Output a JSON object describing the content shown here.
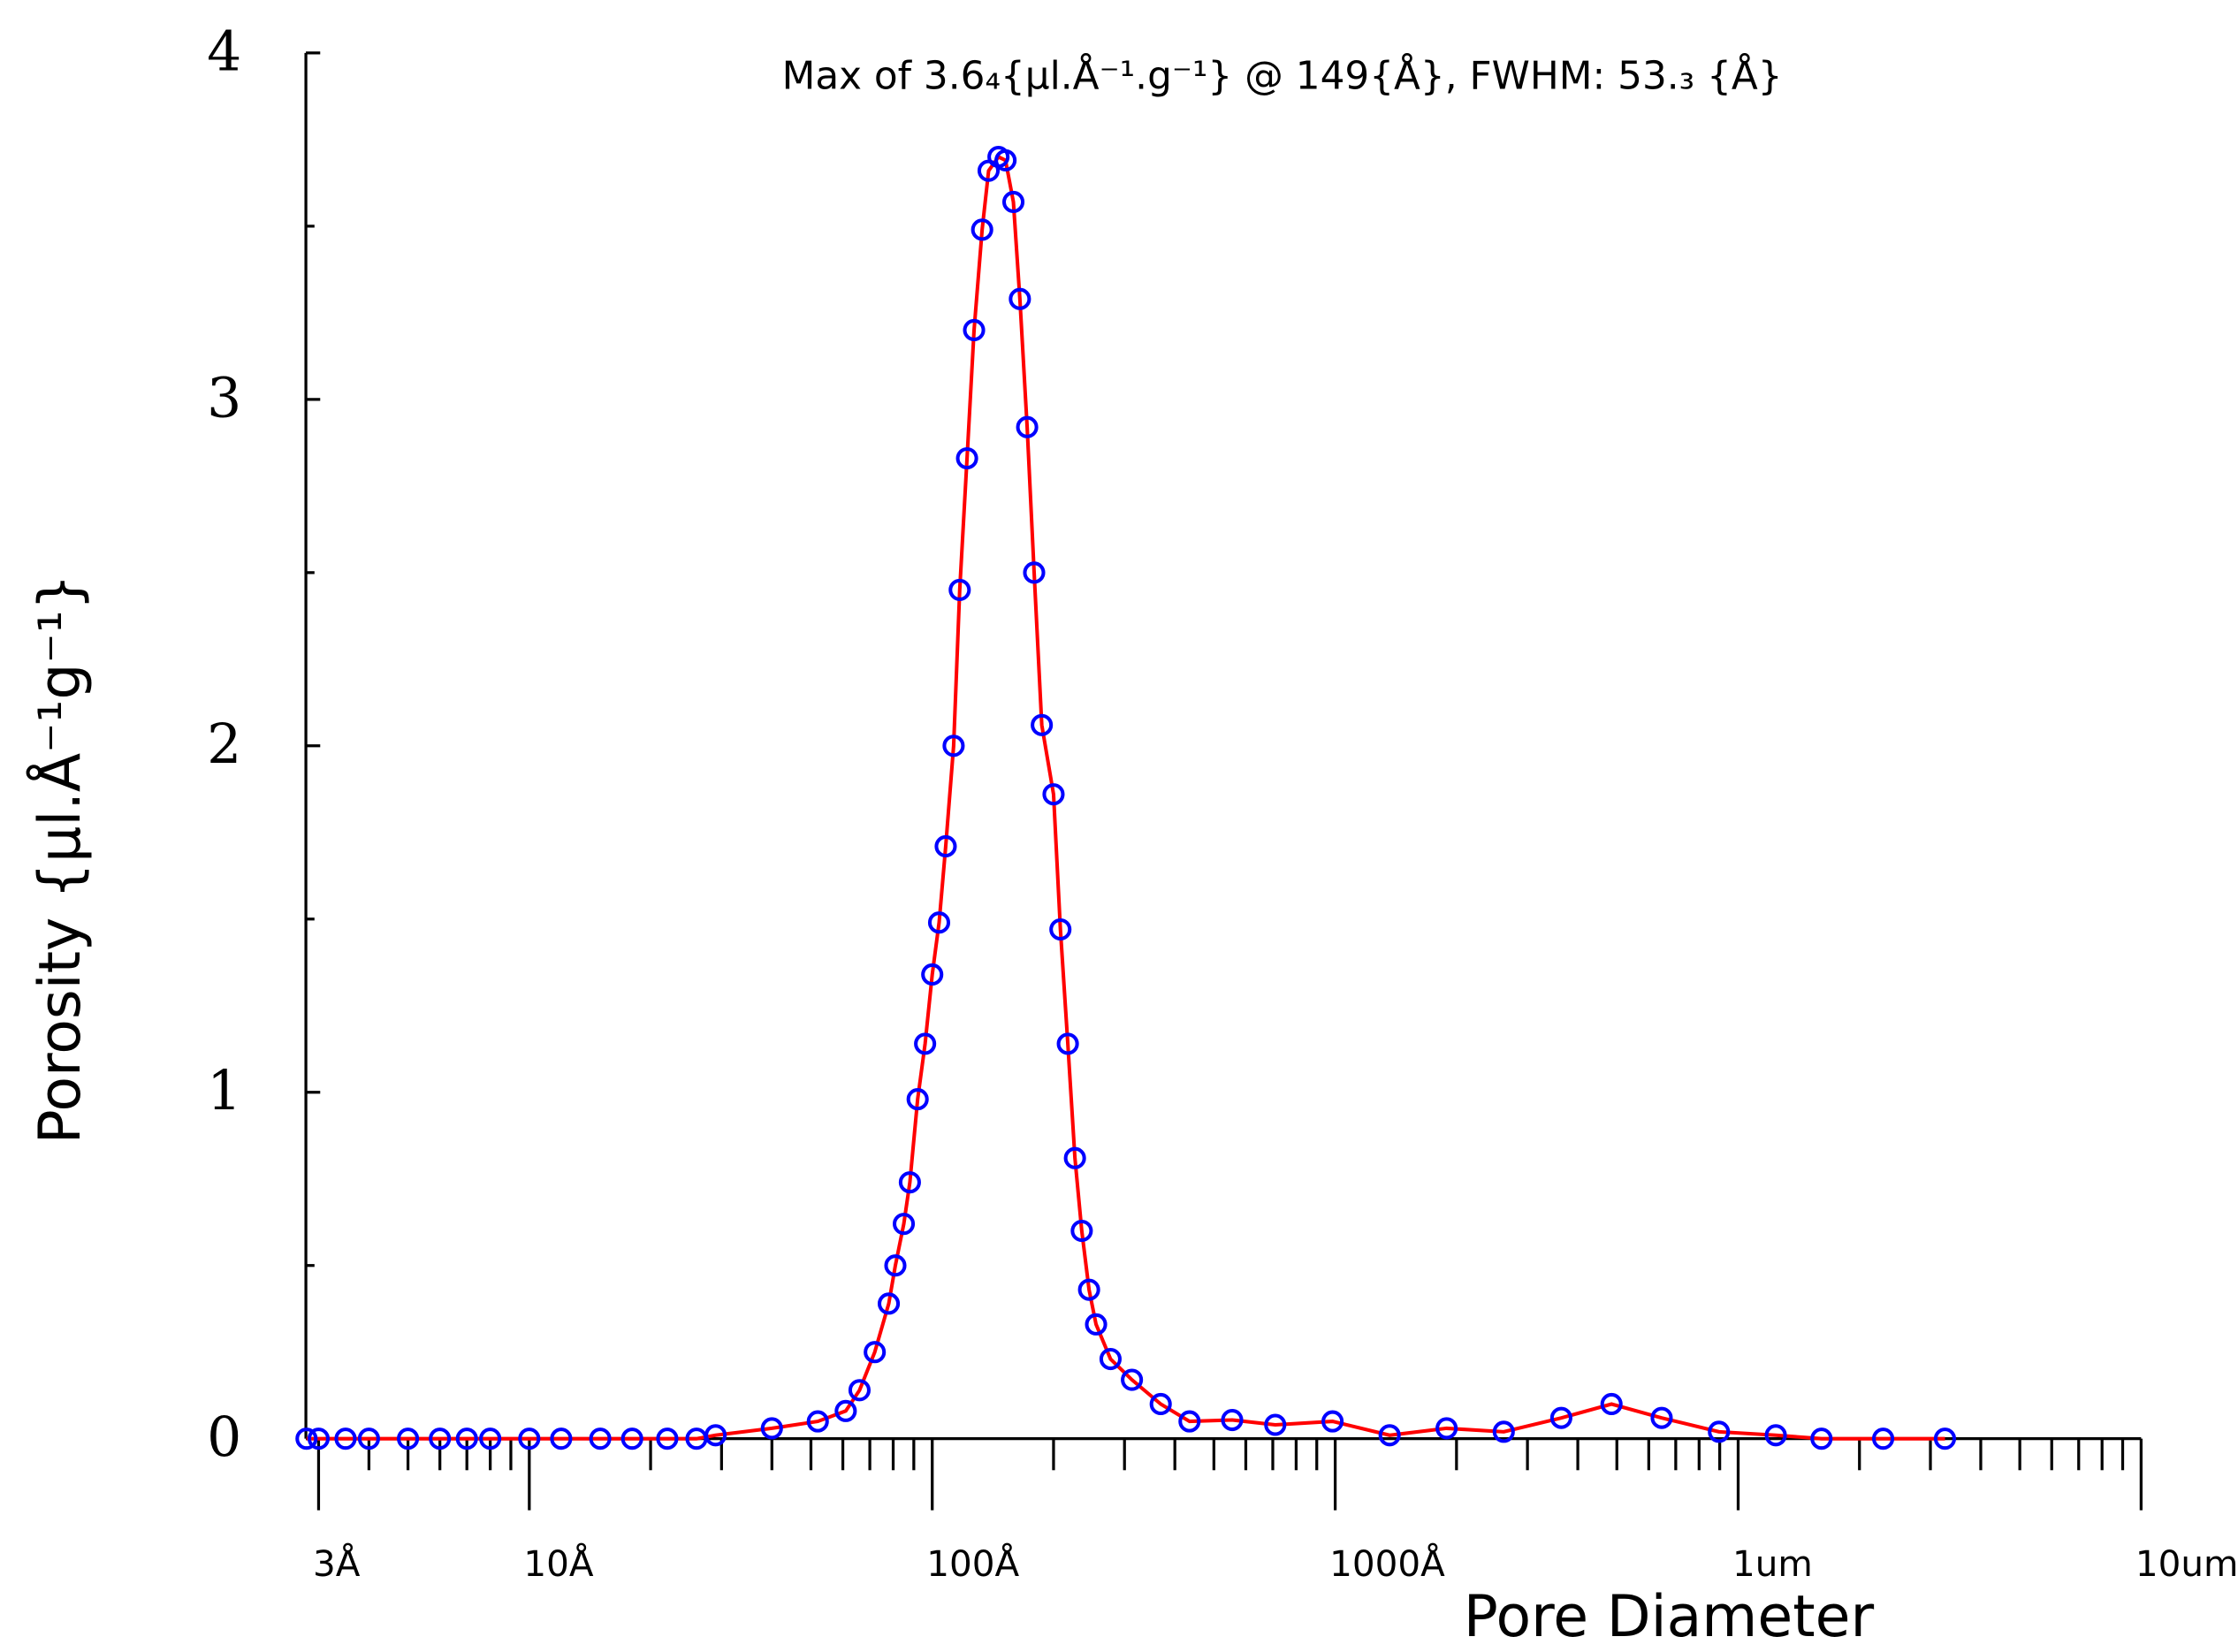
{
  "chart_data": {
    "type": "line",
    "title": "Max  of   3.6₄{µl.Å⁻¹.g⁻¹}  @   149{Å},  FWHM:   53.₃  {Å}",
    "x_label": "Pore  Diameter",
    "y_label": "Porosity  {µl.Å⁻¹g⁻¹}",
    "log_x": true,
    "xlim": [
      2.79,
      100000
    ],
    "xticks": [
      {
        "value": 3,
        "label": "3Å"
      },
      {
        "value": 10,
        "label": "10Å"
      },
      {
        "value": 100,
        "label": "100Å"
      },
      {
        "value": 1000,
        "label": "1000Å"
      },
      {
        "value": 10000,
        "label": "1um"
      },
      {
        "value": 100000,
        "label": "10um"
      }
    ],
    "xminor_ticks": [
      4,
      5,
      6,
      7,
      8,
      9,
      20,
      30,
      40,
      50,
      60,
      70,
      80,
      90,
      200,
      300,
      400,
      500,
      600,
      700,
      800,
      900,
      2000,
      3000,
      4000,
      5000,
      6000,
      7000,
      8000,
      9000,
      20000,
      30000,
      40000,
      50000,
      60000,
      70000,
      80000,
      90000
    ],
    "ylim": [
      0,
      4
    ],
    "yticks": [
      0,
      1,
      2,
      3,
      4
    ],
    "yminor_ticks": [
      0.5,
      1.5,
      2.5,
      3.5
    ],
    "x": [
      2.8,
      3,
      3.5,
      4,
      5,
      6,
      7,
      8,
      10,
      12,
      15,
      18,
      22,
      26,
      29,
      40,
      52,
      61,
      66,
      72,
      78,
      81,
      85,
      88,
      92,
      96,
      100,
      104,
      108,
      113,
      117,
      122,
      127,
      133,
      138,
      146,
      152,
      159,
      165,
      172,
      179,
      187,
      200,
      208,
      217,
      226,
      235,
      245,
      255,
      277,
      313,
      369,
      435,
      555,
      710,
      985,
      1365,
      1890,
      2620,
      3640,
      4850,
      6460,
      8960,
      12400,
      16100,
      22900,
      32600
    ],
    "series": [
      {
        "color": "#ff0000",
        "marker_color": "#0000ff",
        "values": [
          0,
          0,
          0,
          0,
          0,
          0,
          0,
          0,
          0,
          0,
          0,
          0,
          0,
          0,
          0.01,
          0.03,
          0.05,
          0.08,
          0.14,
          0.25,
          0.39,
          0.5,
          0.62,
          0.74,
          0.98,
          1.14,
          1.34,
          1.49,
          1.71,
          2.0,
          2.45,
          2.83,
          3.2,
          3.49,
          3.66,
          3.7,
          3.69,
          3.57,
          3.29,
          2.92,
          2.5,
          2.06,
          1.86,
          1.47,
          1.14,
          0.81,
          0.6,
          0.43,
          0.33,
          0.23,
          0.17,
          0.1,
          0.05,
          0.054,
          0.04,
          0.05,
          0.01,
          0.03,
          0.02,
          0.06,
          0.1,
          0.06,
          0.02,
          0.01,
          0,
          0,
          0
        ]
      }
    ]
  }
}
